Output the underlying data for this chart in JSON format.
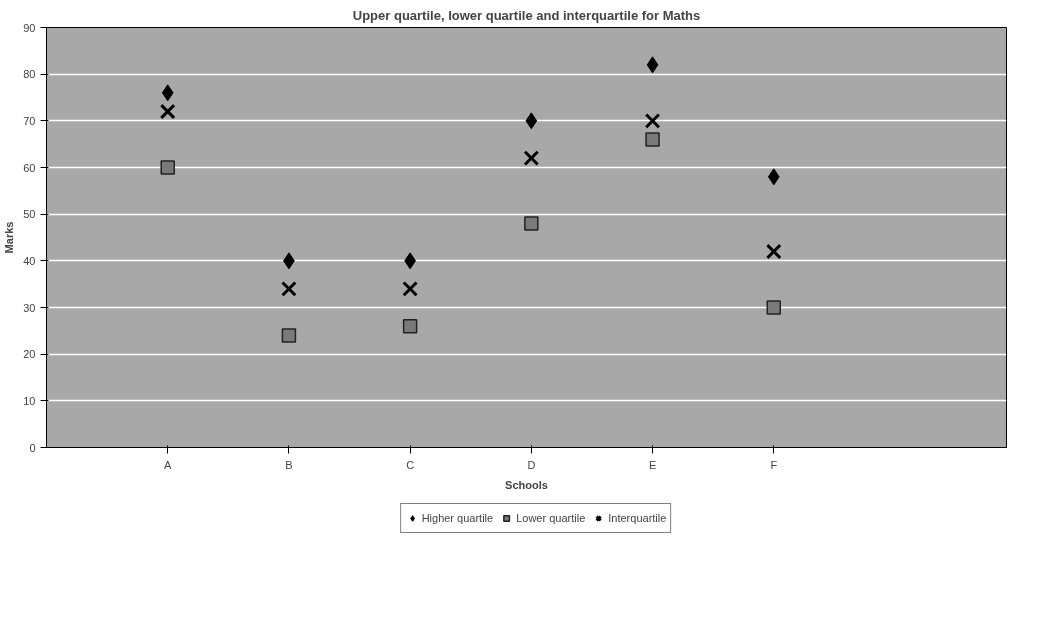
{
  "chart_data": {
    "type": "scatter",
    "title": "Upper quartile, lower quartile and interquartile for Maths",
    "xlabel": "Schools",
    "ylabel": "Marks",
    "categories": [
      "A",
      "B",
      "C",
      "D",
      "E",
      "F"
    ],
    "series": [
      {
        "name": "Higher quartile",
        "color": "#000000",
        "marker": "diamond",
        "values": [
          76,
          40,
          40,
          70,
          82,
          58
        ]
      },
      {
        "name": "Lower quartile",
        "color": "#7a7a7a",
        "marker": "square",
        "values": [
          60,
          24,
          26,
          48,
          66,
          30
        ]
      },
      {
        "name": "Interquartile",
        "color": "#000000",
        "marker": "cross",
        "values": [
          72,
          34,
          34,
          62,
          70,
          42
        ]
      }
    ],
    "ylim": [
      0,
      90
    ],
    "yticks": [
      0,
      10,
      20,
      30,
      40,
      50,
      60,
      70,
      80,
      90
    ],
    "grid": "y",
    "legend": "bottom"
  }
}
